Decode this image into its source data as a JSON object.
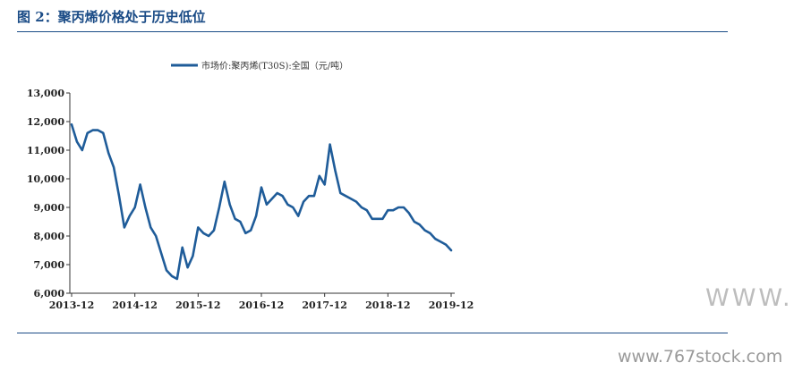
{
  "figure": {
    "title": "图 2：聚丙烯价格处于历史低位"
  },
  "watermark": {
    "big": "WWW.",
    "site": "www.767stock.com"
  },
  "chart_data": {
    "type": "line",
    "title": "",
    "xlabel": "",
    "ylabel": "",
    "legend": {
      "position": "top-left",
      "entries": [
        "市场价:聚丙烯(T30S):全国（元/吨）"
      ]
    },
    "x_tick_labels": [
      "2013-12",
      "2014-12",
      "2015-12",
      "2016-12",
      "2017-12",
      "2018-12",
      "2019-12"
    ],
    "y_tick_labels": [
      "6,000",
      "7,000",
      "8,000",
      "9,000",
      "10,000",
      "11,000",
      "12,000",
      "13,000"
    ],
    "ylim": [
      6000,
      13000
    ],
    "xlim": [
      "2013-12",
      "2019-12"
    ],
    "grid": false,
    "series": [
      {
        "name": "市场价:聚丙烯(T30S):全国（元/吨）",
        "color": "#1f5c99",
        "x": [
          "2013-12",
          "2014-01",
          "2014-02",
          "2014-03",
          "2014-04",
          "2014-05",
          "2014-06",
          "2014-07",
          "2014-08",
          "2014-09",
          "2014-10",
          "2014-11",
          "2014-12",
          "2015-01",
          "2015-02",
          "2015-03",
          "2015-04",
          "2015-05",
          "2015-06",
          "2015-07",
          "2015-08",
          "2015-09",
          "2015-10",
          "2015-11",
          "2015-12",
          "2016-01",
          "2016-02",
          "2016-03",
          "2016-04",
          "2016-05",
          "2016-06",
          "2016-07",
          "2016-08",
          "2016-09",
          "2016-10",
          "2016-11",
          "2016-12",
          "2017-01",
          "2017-02",
          "2017-03",
          "2017-04",
          "2017-05",
          "2017-06",
          "2017-07",
          "2017-08",
          "2017-09",
          "2017-10",
          "2017-11",
          "2017-12",
          "2018-01",
          "2018-02",
          "2018-03",
          "2018-04",
          "2018-05",
          "2018-06",
          "2018-07",
          "2018-08",
          "2018-09",
          "2018-10",
          "2018-11",
          "2018-12",
          "2019-01",
          "2019-02",
          "2019-03",
          "2019-04",
          "2019-05",
          "2019-06",
          "2019-07",
          "2019-08",
          "2019-09",
          "2019-10",
          "2019-11",
          "2019-12"
        ],
        "values": [
          11900,
          11300,
          11000,
          11600,
          11700,
          11700,
          11600,
          10900,
          10400,
          9400,
          8300,
          8700,
          9000,
          9800,
          9000,
          8300,
          8000,
          7400,
          6800,
          6600,
          6500,
          7600,
          6900,
          7300,
          8300,
          8100,
          8000,
          8200,
          9000,
          9900,
          9100,
          8600,
          8500,
          8100,
          8200,
          8700,
          9700,
          9100,
          9300,
          9500,
          9400,
          9100,
          9000,
          8700,
          9200,
          9400,
          9400,
          10100,
          9800,
          11200,
          10300,
          9500,
          9400,
          9300,
          9200,
          9000,
          8900,
          8600,
          8600,
          8600,
          8900,
          8900,
          9000,
          9000,
          8800,
          8500,
          8400,
          8200,
          8100,
          7900,
          7800,
          7700,
          7500
        ]
      }
    ]
  }
}
